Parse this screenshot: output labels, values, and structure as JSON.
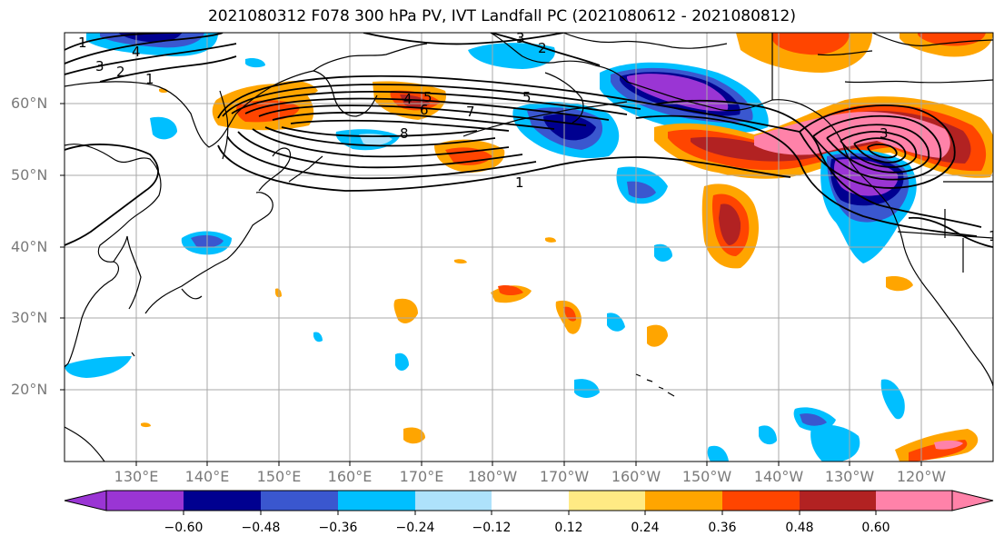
{
  "title": "2021080312 F078 300 hPa PV, IVT Landfall PC (2021080612 - 2021080812)",
  "lat_labels": [
    "60°N",
    "50°N",
    "40°N",
    "30°N",
    "20°N"
  ],
  "lon_labels": [
    "130°E",
    "140°E",
    "150°E",
    "160°E",
    "170°E",
    "180°W",
    "170°W",
    "160°W",
    "150°W",
    "140°W",
    "130°W",
    "120°W"
  ],
  "colorbar": {
    "ticks": [
      "−0.60",
      "−0.48",
      "−0.36",
      "−0.24",
      "−0.12",
      "0.12",
      "0.24",
      "0.36",
      "0.48",
      "0.60"
    ],
    "colors": [
      "#9a35d4",
      "#000090",
      "#3a57cf",
      "#00bfff",
      "#aee2fb",
      "#ffffff",
      "#ffea84",
      "#ffa500",
      "#ff4500",
      "#b22222",
      "#ff82a9"
    ]
  },
  "contour_labels": [
    "1",
    "4",
    "3",
    "2",
    "1",
    "3",
    "2",
    "5",
    "4",
    "5",
    "6",
    "7",
    "8",
    "1",
    "3",
    "1"
  ],
  "colors": {
    "grid": "#a8a8a8",
    "coast": "#000000",
    "contour": "#000000"
  }
}
